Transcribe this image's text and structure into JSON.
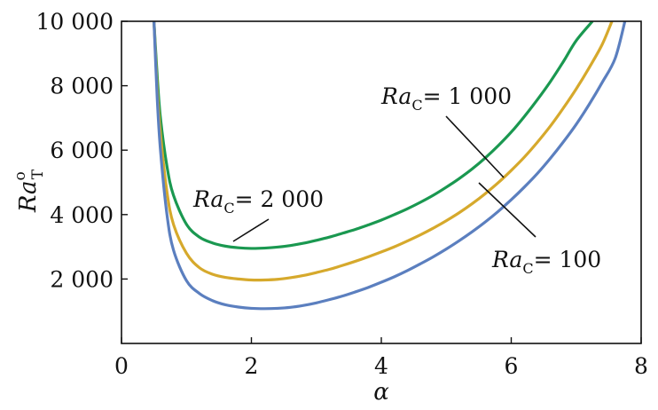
{
  "chart_data": {
    "type": "line",
    "xlabel": "α",
    "ylabel_main": "Ra",
    "ylabel_super": "o",
    "ylabel_sub": "T",
    "xlim": [
      0,
      8
    ],
    "ylim": [
      0,
      10000
    ],
    "xticks": [
      0,
      2,
      4,
      6,
      8
    ],
    "xtick_labels": [
      "0",
      "2",
      "4",
      "6",
      "8"
    ],
    "yticks": [
      2000,
      4000,
      6000,
      8000,
      10000
    ],
    "ytick_labels": [
      "2 000",
      "4 000",
      "6 000",
      "8 000",
      "10 000"
    ],
    "grid": false,
    "legend": "none",
    "series": [
      {
        "color": "#1a9850",
        "x": [
          0.5,
          0.55,
          0.6,
          0.7,
          0.8,
          1.0,
          1.2,
          1.4,
          1.6,
          1.8,
          2.0,
          2.2,
          2.4,
          2.6,
          2.8,
          3.0,
          3.2,
          3.4,
          3.6,
          3.8,
          4.0,
          4.2,
          4.4,
          4.6,
          4.8,
          5.0,
          5.2,
          5.4,
          5.6,
          5.8,
          6.0,
          6.2,
          6.4,
          6.6,
          6.8,
          7.0,
          7.25
        ],
        "y": [
          10000,
          8300,
          7000,
          5500,
          4600,
          3700,
          3300,
          3120,
          3020,
          2970,
          2950,
          2960,
          2990,
          3040,
          3110,
          3200,
          3300,
          3420,
          3540,
          3680,
          3830,
          4000,
          4180,
          4380,
          4600,
          4850,
          5120,
          5420,
          5760,
          6140,
          6560,
          7040,
          7560,
          8120,
          8740,
          9400,
          10000
        ]
      },
      {
        "color": "#d6a92c",
        "x": [
          0.5,
          0.55,
          0.6,
          0.7,
          0.8,
          1.0,
          1.2,
          1.4,
          1.6,
          1.8,
          2.0,
          2.2,
          2.4,
          2.6,
          2.8,
          3.0,
          3.2,
          3.4,
          3.6,
          3.8,
          4.0,
          4.2,
          4.4,
          4.6,
          4.8,
          5.0,
          5.2,
          5.4,
          5.6,
          5.8,
          6.0,
          6.2,
          6.4,
          6.6,
          6.8,
          7.0,
          7.2,
          7.4,
          7.55
        ],
        "y": [
          10000,
          7900,
          6500,
          4700,
          3700,
          2800,
          2350,
          2150,
          2050,
          2000,
          1970,
          1970,
          1990,
          2040,
          2110,
          2200,
          2300,
          2420,
          2550,
          2690,
          2840,
          3000,
          3180,
          3370,
          3580,
          3810,
          4060,
          4340,
          4650,
          4990,
          5370,
          5780,
          6240,
          6740,
          7300,
          7900,
          8560,
          9280,
          10000
        ]
      },
      {
        "color": "#5b7fbf",
        "x": [
          0.5,
          0.55,
          0.6,
          0.7,
          0.8,
          1.0,
          1.2,
          1.4,
          1.6,
          1.8,
          2.0,
          2.2,
          2.4,
          2.6,
          2.8,
          3.0,
          3.2,
          3.4,
          3.6,
          3.8,
          4.0,
          4.2,
          4.4,
          4.6,
          4.8,
          5.0,
          5.2,
          5.4,
          5.6,
          5.8,
          6.0,
          6.2,
          6.4,
          6.6,
          6.8,
          7.0,
          7.2,
          7.4,
          7.6,
          7.75
        ],
        "y": [
          10000,
          7600,
          6000,
          4000,
          2900,
          1950,
          1550,
          1330,
          1200,
          1130,
          1090,
          1080,
          1090,
          1120,
          1180,
          1260,
          1360,
          1470,
          1600,
          1740,
          1900,
          2070,
          2260,
          2470,
          2690,
          2930,
          3190,
          3470,
          3770,
          4100,
          4460,
          4850,
          5270,
          5740,
          6250,
          6800,
          7420,
          8100,
          8850,
          10000
        ]
      }
    ],
    "annotations": [
      {
        "label_main": "Ra",
        "label_sub": "C",
        "label_value": "= 2 000"
      },
      {
        "label_main": "Ra",
        "label_sub": "C",
        "label_value": "= 1 000"
      },
      {
        "label_main": "Ra",
        "label_sub": "C",
        "label_value": "= 100"
      }
    ]
  }
}
